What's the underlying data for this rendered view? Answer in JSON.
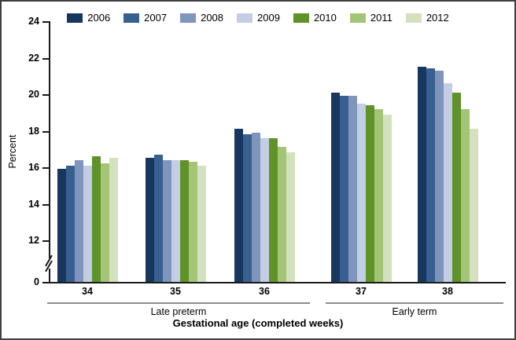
{
  "chart_data": {
    "type": "bar",
    "title": "",
    "ylabel": "Percent",
    "xlabel": "Gestational age (completed weeks)",
    "categories": [
      "34",
      "35",
      "36",
      "37",
      "38"
    ],
    "series": [
      {
        "name": "2006",
        "color": "#17375E",
        "values": [
          15.9,
          16.5,
          18.1,
          20.1,
          21.5
        ]
      },
      {
        "name": "2007",
        "color": "#376091",
        "values": [
          16.1,
          16.7,
          17.8,
          19.9,
          21.4
        ]
      },
      {
        "name": "2008",
        "color": "#8095BB",
        "values": [
          16.4,
          16.4,
          17.9,
          19.9,
          21.3
        ]
      },
      {
        "name": "2009",
        "color": "#C3CDE4",
        "values": [
          16.1,
          16.4,
          17.6,
          19.5,
          20.6
        ]
      },
      {
        "name": "2010",
        "color": "#5F9228",
        "values": [
          16.6,
          16.4,
          17.6,
          19.4,
          20.1
        ]
      },
      {
        "name": "2011",
        "color": "#A3C575",
        "values": [
          16.2,
          16.3,
          17.1,
          19.2,
          19.2
        ]
      },
      {
        "name": "2012",
        "color": "#D4E1BE",
        "values": [
          16.5,
          16.1,
          16.8,
          18.9,
          18.1
        ]
      }
    ],
    "y_ticks": [
      0,
      12,
      14,
      16,
      18,
      20,
      22,
      24
    ],
    "ylim": [
      0,
      24
    ],
    "axis_break": true,
    "grid": false,
    "legend_position": "top",
    "group_brackets": [
      {
        "label": "Late preterm",
        "categories": [
          "34",
          "35",
          "36"
        ]
      },
      {
        "label": "Early term",
        "categories": [
          "37",
          "38"
        ]
      }
    ]
  }
}
